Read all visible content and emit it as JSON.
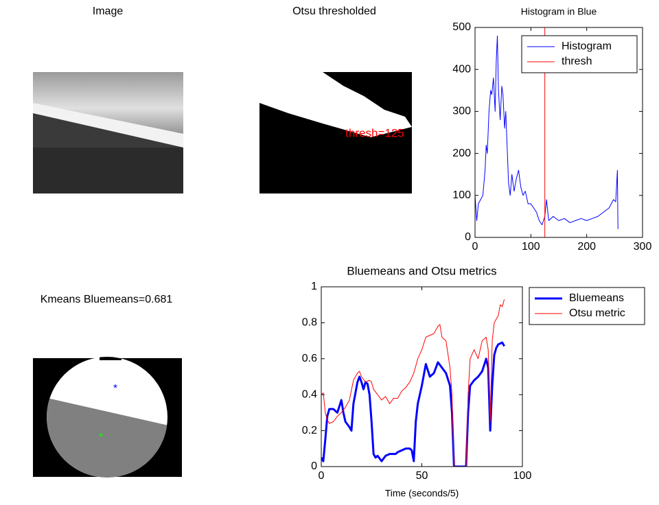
{
  "images": [
    {
      "title": "Image"
    },
    {
      "title": "Otsu thresholded",
      "annotation": "thresh=125"
    },
    {
      "title": "Kmeans Bluemeans=0.681"
    }
  ],
  "chart_data": [
    {
      "type": "line",
      "title": "Histogram in Blue",
      "xlim": [
        0,
        300
      ],
      "xticks": [
        0,
        100,
        200,
        300
      ],
      "ylim": [
        0,
        500
      ],
      "yticks": [
        0,
        100,
        200,
        300,
        400,
        500
      ],
      "legend": "upper right",
      "series": [
        {
          "name": "Histogram",
          "color": "#0000ff",
          "linewidth": 1,
          "x": [
            0,
            3,
            6,
            10,
            14,
            18,
            20,
            22,
            25,
            28,
            30,
            33,
            36,
            38,
            40,
            42,
            45,
            48,
            50,
            53,
            55,
            58,
            60,
            63,
            66,
            70,
            74,
            78,
            82,
            86,
            90,
            95,
            100,
            105,
            110,
            115,
            120,
            125,
            128,
            132,
            140,
            150,
            160,
            170,
            180,
            190,
            200,
            210,
            220,
            230,
            240,
            248,
            252,
            255,
            256
          ],
          "values": [
            100,
            40,
            80,
            90,
            100,
            160,
            220,
            200,
            300,
            350,
            340,
            380,
            300,
            420,
            480,
            350,
            280,
            360,
            340,
            260,
            300,
            200,
            130,
            100,
            150,
            110,
            140,
            160,
            120,
            100,
            110,
            80,
            80,
            70,
            60,
            40,
            30,
            50,
            90,
            40,
            50,
            40,
            45,
            35,
            40,
            45,
            40,
            45,
            50,
            60,
            70,
            90,
            85,
            160,
            20
          ]
        },
        {
          "name": "thresh",
          "color": "#ff0000",
          "linewidth": 1,
          "x": [
            125,
            125
          ],
          "values": [
            0,
            500
          ]
        }
      ]
    },
    {
      "type": "line",
      "title": "Bluemeans and Otsu metrics",
      "xlabel": "Time (seconds/5)",
      "xlim": [
        0,
        100
      ],
      "xticks": [
        0,
        50,
        100
      ],
      "ylim": [
        0,
        1
      ],
      "yticks": [
        0,
        0.2,
        0.4,
        0.6,
        0.8,
        1
      ],
      "legend": "outside right",
      "series": [
        {
          "name": "Bluemeans",
          "color": "#0000ff",
          "linewidth": 3,
          "x": [
            0,
            1,
            2,
            3,
            4,
            6,
            8,
            10,
            11,
            12,
            14,
            15,
            16,
            18,
            19,
            20,
            21,
            22,
            23,
            24,
            25,
            26,
            27,
            28,
            30,
            32,
            34,
            37,
            38,
            40,
            42,
            44,
            45,
            46,
            47,
            48,
            50,
            52,
            54,
            56,
            58,
            60,
            62,
            64,
            65,
            66,
            72,
            73,
            74,
            76,
            78,
            80,
            82,
            83,
            84,
            85,
            86,
            87,
            88,
            90,
            91
          ],
          "values": [
            0.05,
            0.03,
            0.15,
            0.28,
            0.32,
            0.32,
            0.3,
            0.37,
            0.3,
            0.25,
            0.22,
            0.2,
            0.35,
            0.47,
            0.5,
            0.47,
            0.43,
            0.47,
            0.46,
            0.4,
            0.25,
            0.07,
            0.05,
            0.06,
            0.03,
            0.06,
            0.07,
            0.07,
            0.08,
            0.09,
            0.1,
            0.1,
            0.09,
            0.03,
            0.25,
            0.35,
            0.45,
            0.57,
            0.5,
            0.52,
            0.58,
            0.55,
            0.52,
            0.45,
            0.3,
            0,
            0,
            0.3,
            0.45,
            0.48,
            0.5,
            0.53,
            0.6,
            0.55,
            0.2,
            0.45,
            0.62,
            0.66,
            0.68,
            0.69,
            0.67
          ]
        },
        {
          "name": "Otsu metric",
          "color": "#ff0000",
          "linewidth": 1,
          "x": [
            0,
            1,
            2,
            3,
            4,
            6,
            8,
            10,
            12,
            14,
            16,
            18,
            19,
            20,
            22,
            24,
            25,
            26,
            28,
            30,
            32,
            34,
            36,
            38,
            40,
            42,
            44,
            46,
            48,
            50,
            52,
            54,
            56,
            58,
            59,
            60,
            62,
            64,
            65,
            66,
            72,
            73,
            74,
            76,
            78,
            80,
            82,
            83,
            84,
            85,
            86,
            88,
            89,
            90,
            91
          ],
          "values": [
            0.4,
            0.41,
            0.3,
            0.26,
            0.24,
            0.25,
            0.28,
            0.3,
            0.33,
            0.37,
            0.48,
            0.52,
            0.53,
            0.5,
            0.47,
            0.48,
            0.47,
            0.43,
            0.4,
            0.37,
            0.39,
            0.35,
            0.38,
            0.38,
            0.42,
            0.44,
            0.47,
            0.52,
            0.6,
            0.65,
            0.72,
            0.73,
            0.74,
            0.78,
            0.79,
            0.72,
            0.7,
            0.55,
            0.4,
            0,
            0,
            0.4,
            0.6,
            0.65,
            0.6,
            0.7,
            0.72,
            0.65,
            0.25,
            0.7,
            0.8,
            0.84,
            0.9,
            0.89,
            0.93
          ]
        }
      ]
    }
  ]
}
